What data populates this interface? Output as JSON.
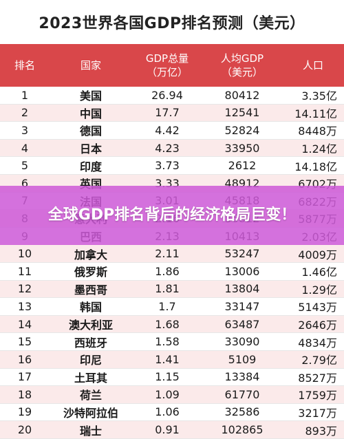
{
  "title": "2023世界各国GDP排名预测（美元）",
  "headers": {
    "rank": "排名",
    "country": "国家",
    "gdp": "GDP总量\n（万亿）",
    "gdp_per_capita": "人均GDP\n（美元）",
    "population": "人口"
  },
  "rows": [
    {
      "rank": "1",
      "country": "美国",
      "gdp": "26.94",
      "gdp_per_capita": "80412",
      "population": "3.35亿"
    },
    {
      "rank": "2",
      "country": "中国",
      "gdp": "17.7",
      "gdp_per_capita": "12541",
      "population": "14.11亿"
    },
    {
      "rank": "3",
      "country": "德国",
      "gdp": "4.42",
      "gdp_per_capita": "52824",
      "population": "8448万"
    },
    {
      "rank": "4",
      "country": "日本",
      "gdp": "4.23",
      "gdp_per_capita": "33950",
      "population": "1.24亿"
    },
    {
      "rank": "5",
      "country": "印度",
      "gdp": "3.73",
      "gdp_per_capita": "2612",
      "population": "14.18亿"
    },
    {
      "rank": "6",
      "country": "英国",
      "gdp": "3.33",
      "gdp_per_capita": "48912",
      "population": "6702万"
    },
    {
      "rank": "7",
      "country": "法国",
      "gdp": "3.01",
      "gdp_per_capita": "45818",
      "population": "6822万"
    },
    {
      "rank": "8",
      "country": "意大利",
      "gdp": "2.16",
      "gdp_per_capita": "36812",
      "population": "5877万"
    },
    {
      "rank": "9",
      "country": "巴西",
      "gdp": "2.13",
      "gdp_per_capita": "10413",
      "population": "2.03亿"
    },
    {
      "rank": "10",
      "country": "加拿大",
      "gdp": "2.11",
      "gdp_per_capita": "53247",
      "population": "4009万"
    },
    {
      "rank": "11",
      "country": "俄罗斯",
      "gdp": "1.86",
      "gdp_per_capita": "13006",
      "population": "1.46亿"
    },
    {
      "rank": "12",
      "country": "墨西哥",
      "gdp": "1.81",
      "gdp_per_capita": "13804",
      "population": "1.29亿"
    },
    {
      "rank": "13",
      "country": "韩国",
      "gdp": "1.7",
      "gdp_per_capita": "33147",
      "population": "5143万"
    },
    {
      "rank": "14",
      "country": "澳大利亚",
      "gdp": "1.68",
      "gdp_per_capita": "63487",
      "population": "2646万"
    },
    {
      "rank": "15",
      "country": "西班牙",
      "gdp": "1.58",
      "gdp_per_capita": "33090",
      "population": "4834万"
    },
    {
      "rank": "16",
      "country": "印尼",
      "gdp": "1.41",
      "gdp_per_capita": "5109",
      "population": "2.79亿"
    },
    {
      "rank": "17",
      "country": "土耳其",
      "gdp": "1.15",
      "gdp_per_capita": "13384",
      "population": "8527万"
    },
    {
      "rank": "18",
      "country": "荷兰",
      "gdp": "1.09",
      "gdp_per_capita": "61770",
      "population": "1759万"
    },
    {
      "rank": "19",
      "country": "沙特阿拉伯",
      "gdp": "1.06",
      "gdp_per_capita": "32586",
      "population": "3217万"
    },
    {
      "rank": "20",
      "country": "瑞士",
      "gdp": "0.91",
      "gdp_per_capita": "102865",
      "population": "893万"
    }
  ],
  "overlay": {
    "text": "全球GDP排名背后的经济格局巨变！"
  },
  "colors": {
    "header_bg": "#d9474a",
    "overlay_bg": "#cd5ad7"
  }
}
